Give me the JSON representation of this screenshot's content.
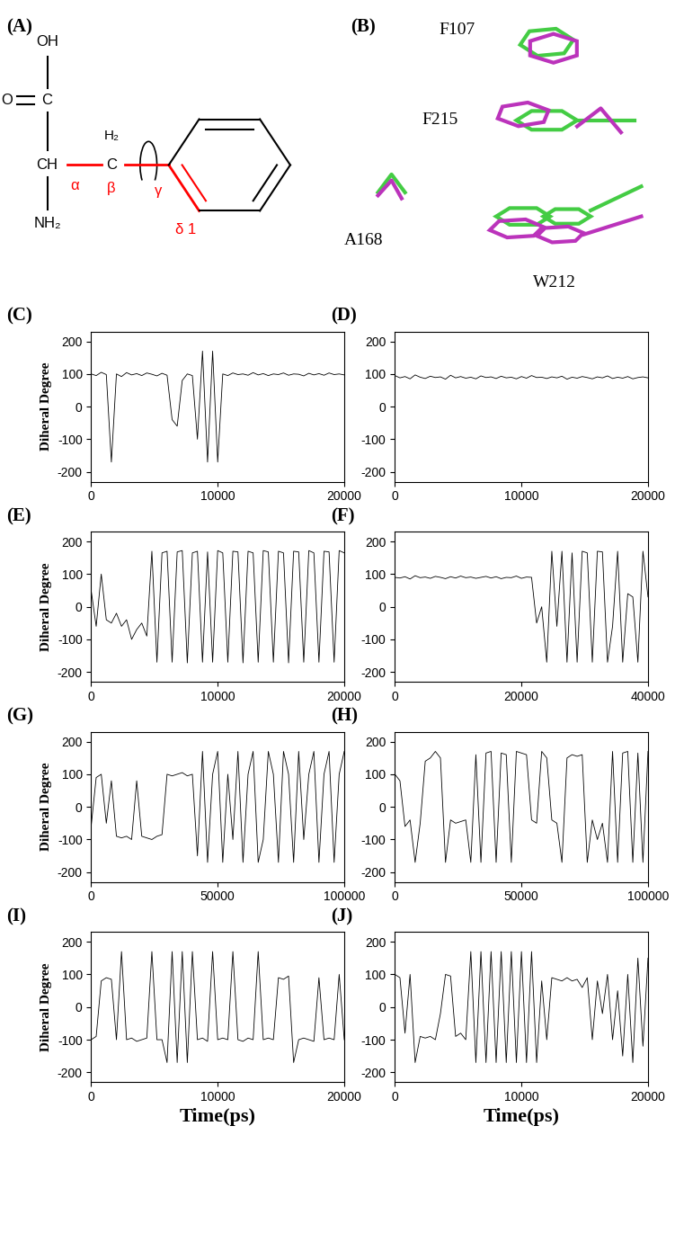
{
  "diagram": {
    "A": {
      "title": "(A)",
      "atoms": {
        "hydroxyl": "OH",
        "oxygen": "O",
        "carboxyl_carbon": "C",
        "alpha_carbon": "CH",
        "amino": "NH₂",
        "beta_hydrogens": "H₂",
        "beta_carbon": "C"
      },
      "bond_labels": {
        "alpha": "α",
        "beta": "β",
        "gamma": "γ",
        "delta": "δ 1"
      }
    },
    "B": {
      "title": "(B)",
      "residues": [
        "F107",
        "F215",
        "A168",
        "W212"
      ]
    }
  },
  "chart_data": [
    {
      "type": "line",
      "title": "(C)",
      "ylabel": "Diheral Degree",
      "color": "#000000",
      "x": [
        0,
        400,
        800,
        1200,
        1600,
        2000,
        2400,
        2800,
        3200,
        3600,
        4000,
        4400,
        4800,
        5200,
        5600,
        6000,
        6400,
        6800,
        7200,
        7600,
        8000,
        8400,
        8800,
        9200,
        9600,
        10000,
        10400,
        10800,
        11200,
        11600,
        12000,
        12400,
        12800,
        13200,
        13600,
        14000,
        14400,
        14800,
        15200,
        15600,
        16000,
        16400,
        16800,
        17200,
        17600,
        18000,
        18400,
        18800,
        19200,
        19600,
        20000
      ],
      "values": [
        100,
        95,
        105,
        98,
        -170,
        100,
        92,
        104,
        97,
        101,
        95,
        103,
        99,
        94,
        102,
        96,
        -40,
        -60,
        80,
        100,
        95,
        -100,
        170,
        -170,
        170,
        -170,
        100,
        95,
        103,
        98,
        100,
        96,
        104,
        97,
        101,
        95,
        100,
        98,
        103,
        96,
        100,
        99,
        94,
        102,
        97,
        101,
        96,
        103,
        98,
        100,
        97
      ],
      "xlim": [
        0,
        20000
      ],
      "xticks": [
        0,
        10000,
        20000
      ],
      "ylim": [
        -230,
        230
      ],
      "yticks": [
        -200,
        -100,
        0,
        100,
        200
      ]
    },
    {
      "type": "line",
      "title": "(D)",
      "color": "#000000",
      "x": [
        0,
        400,
        800,
        1200,
        1600,
        2000,
        2400,
        2800,
        3200,
        3600,
        4000,
        4400,
        4800,
        5200,
        5600,
        6000,
        6400,
        6800,
        7200,
        7600,
        8000,
        8400,
        8800,
        9200,
        9600,
        10000,
        10400,
        10800,
        11200,
        11600,
        12000,
        12400,
        12800,
        13200,
        13600,
        14000,
        14400,
        14800,
        15200,
        15600,
        16000,
        16400,
        16800,
        17200,
        17600,
        18000,
        18400,
        18800,
        19200,
        19600,
        20000
      ],
      "values": [
        95,
        88,
        92,
        85,
        97,
        90,
        86,
        93,
        89,
        91,
        84,
        96,
        88,
        92,
        87,
        90,
        85,
        94,
        89,
        91,
        86,
        93,
        88,
        90,
        85,
        92,
        87,
        95,
        89,
        90,
        86,
        91,
        88,
        93,
        84,
        90,
        87,
        92,
        89,
        85,
        91,
        88,
        94,
        86,
        90,
        87,
        92,
        85,
        89,
        91,
        88
      ],
      "xlim": [
        0,
        20000
      ],
      "xticks": [
        0,
        10000,
        20000
      ],
      "ylim": [
        -230,
        230
      ],
      "yticks": [
        -200,
        -100,
        0,
        100,
        200
      ]
    },
    {
      "type": "line",
      "title": "(E)",
      "ylabel": "Diheral Degree",
      "color": "#000000",
      "x": [
        0,
        400,
        800,
        1200,
        1600,
        2000,
        2400,
        2800,
        3200,
        3600,
        4000,
        4400,
        4800,
        5200,
        5600,
        6000,
        6400,
        6800,
        7200,
        7600,
        8000,
        8400,
        8800,
        9200,
        9600,
        10000,
        10400,
        10800,
        11200,
        11600,
        12000,
        12400,
        12800,
        13200,
        13600,
        14000,
        14400,
        14800,
        15200,
        15600,
        16000,
        16400,
        16800,
        17200,
        17600,
        18000,
        18400,
        18800,
        19200,
        19600,
        20000
      ],
      "values": [
        50,
        -60,
        100,
        -40,
        -50,
        -20,
        -60,
        -40,
        -100,
        -70,
        -50,
        -90,
        170,
        -170,
        165,
        170,
        -170,
        168,
        172,
        -172,
        165,
        170,
        -170,
        168,
        -170,
        172,
        165,
        -170,
        170,
        168,
        -172,
        170,
        165,
        -170,
        172,
        168,
        -170,
        170,
        165,
        -172,
        170,
        168,
        -170,
        172,
        165,
        -170,
        170,
        168,
        -170,
        172,
        165
      ],
      "xlim": [
        0,
        20000
      ],
      "xticks": [
        0,
        10000,
        20000
      ],
      "ylim": [
        -230,
        230
      ],
      "yticks": [
        -200,
        -100,
        0,
        100,
        200
      ]
    },
    {
      "type": "line",
      "title": "(F)",
      "color": "#000000",
      "x": [
        0,
        800,
        1600,
        2400,
        3200,
        4000,
        4800,
        5600,
        6400,
        7200,
        8000,
        8800,
        9600,
        10400,
        11200,
        12000,
        12800,
        13600,
        14400,
        15200,
        16000,
        16800,
        17600,
        18400,
        19200,
        20000,
        20800,
        21600,
        22400,
        23200,
        24000,
        24800,
        25600,
        26400,
        27200,
        28000,
        28800,
        29600,
        30400,
        31200,
        32000,
        32800,
        33600,
        34400,
        35200,
        36000,
        36800,
        37600,
        38400,
        39200,
        40000
      ],
      "values": [
        90,
        88,
        92,
        85,
        95,
        89,
        91,
        87,
        93,
        90,
        86,
        92,
        88,
        94,
        89,
        91,
        87,
        90,
        93,
        88,
        92,
        86,
        90,
        89,
        94,
        87,
        91,
        90,
        -50,
        0,
        -170,
        170,
        -60,
        170,
        -170,
        165,
        -170,
        170,
        165,
        -170,
        170,
        168,
        -170,
        -60,
        170,
        -170,
        40,
        30,
        -170,
        170,
        30
      ],
      "xlim": [
        0,
        40000
      ],
      "xticks": [
        0,
        20000,
        40000
      ],
      "ylim": [
        -230,
        230
      ],
      "yticks": [
        -200,
        -100,
        0,
        100,
        200
      ]
    },
    {
      "type": "line",
      "title": "(G)",
      "ylabel": "Diheral Degree",
      "color": "#000000",
      "x": [
        0,
        2000,
        4000,
        6000,
        8000,
        10000,
        12000,
        14000,
        16000,
        18000,
        20000,
        22000,
        24000,
        26000,
        28000,
        30000,
        32000,
        34000,
        36000,
        38000,
        40000,
        42000,
        44000,
        46000,
        48000,
        50000,
        52000,
        54000,
        56000,
        58000,
        60000,
        62000,
        64000,
        66000,
        68000,
        70000,
        72000,
        74000,
        76000,
        78000,
        80000,
        82000,
        84000,
        86000,
        88000,
        90000,
        92000,
        94000,
        96000,
        98000,
        100000
      ],
      "values": [
        -60,
        90,
        100,
        -50,
        80,
        -90,
        -95,
        -90,
        -100,
        80,
        -90,
        -95,
        -100,
        -90,
        -85,
        100,
        95,
        100,
        105,
        95,
        100,
        -150,
        170,
        -170,
        100,
        170,
        -170,
        100,
        -100,
        170,
        -170,
        100,
        170,
        -170,
        -100,
        170,
        100,
        -170,
        170,
        100,
        -170,
        170,
        -100,
        100,
        170,
        -170,
        100,
        170,
        -170,
        100,
        170
      ],
      "xlim": [
        0,
        100000
      ],
      "xticks": [
        0,
        50000,
        100000
      ],
      "ylim": [
        -230,
        230
      ],
      "yticks": [
        -200,
        -100,
        0,
        100,
        200
      ]
    },
    {
      "type": "line",
      "title": "(H)",
      "color": "#000000",
      "x": [
        0,
        2000,
        4000,
        6000,
        8000,
        10000,
        12000,
        14000,
        16000,
        18000,
        20000,
        22000,
        24000,
        26000,
        28000,
        30000,
        32000,
        34000,
        36000,
        38000,
        40000,
        42000,
        44000,
        46000,
        48000,
        50000,
        52000,
        54000,
        56000,
        58000,
        60000,
        62000,
        64000,
        66000,
        68000,
        70000,
        72000,
        74000,
        76000,
        78000,
        80000,
        82000,
        84000,
        86000,
        88000,
        90000,
        92000,
        94000,
        96000,
        98000,
        100000
      ],
      "values": [
        100,
        80,
        -60,
        -40,
        -170,
        -50,
        140,
        150,
        170,
        150,
        -170,
        -40,
        -50,
        -45,
        -40,
        -170,
        160,
        -170,
        165,
        170,
        -170,
        165,
        160,
        -170,
        170,
        165,
        160,
        -40,
        -50,
        170,
        150,
        -40,
        -50,
        -170,
        150,
        160,
        155,
        160,
        -170,
        -40,
        -100,
        -50,
        -170,
        170,
        -170,
        165,
        170,
        -170,
        165,
        -170,
        170
      ],
      "xlim": [
        0,
        100000
      ],
      "xticks": [
        0,
        50000,
        100000
      ],
      "ylim": [
        -230,
        230
      ],
      "yticks": [
        -200,
        -100,
        0,
        100,
        200
      ]
    },
    {
      "type": "line",
      "title": "(I)",
      "ylabel": "Diheral Degree",
      "xlabel": "Time(ps)",
      "color": "#000000",
      "x": [
        0,
        400,
        800,
        1200,
        1600,
        2000,
        2400,
        2800,
        3200,
        3600,
        4000,
        4400,
        4800,
        5200,
        5600,
        6000,
        6400,
        6800,
        7200,
        7600,
        8000,
        8400,
        8800,
        9200,
        9600,
        10000,
        10400,
        10800,
        11200,
        11600,
        12000,
        12400,
        12800,
        13200,
        13600,
        14000,
        14400,
        14800,
        15200,
        15600,
        16000,
        16400,
        16800,
        17200,
        17600,
        18000,
        18400,
        18800,
        19200,
        19600,
        20000
      ],
      "values": [
        -100,
        -90,
        80,
        90,
        85,
        -100,
        170,
        -100,
        -95,
        -105,
        -100,
        -95,
        170,
        -100,
        -100,
        -170,
        170,
        -170,
        170,
        -170,
        170,
        -100,
        -95,
        -105,
        170,
        -100,
        -95,
        -100,
        170,
        -100,
        -105,
        -95,
        -100,
        170,
        -100,
        -95,
        -100,
        90,
        85,
        95,
        -170,
        -100,
        -95,
        -100,
        -105,
        90,
        -100,
        -95,
        -100,
        100,
        -100
      ],
      "xlim": [
        0,
        20000
      ],
      "xticks": [
        0,
        10000,
        20000
      ],
      "ylim": [
        -230,
        230
      ],
      "yticks": [
        -200,
        -100,
        0,
        100,
        200
      ]
    },
    {
      "type": "line",
      "title": "(J)",
      "xlabel": "Time(ps)",
      "color": "#000000",
      "x": [
        0,
        400,
        800,
        1200,
        1600,
        2000,
        2400,
        2800,
        3200,
        3600,
        4000,
        4400,
        4800,
        5200,
        5600,
        6000,
        6400,
        6800,
        7200,
        7600,
        8000,
        8400,
        8800,
        9200,
        9600,
        10000,
        10400,
        10800,
        11200,
        11600,
        12000,
        12400,
        12800,
        13200,
        13600,
        14000,
        14400,
        14800,
        15200,
        15600,
        16000,
        16400,
        16800,
        17200,
        17600,
        18000,
        18400,
        18800,
        19200,
        19600,
        20000
      ],
      "values": [
        100,
        90,
        -80,
        100,
        -170,
        -90,
        -95,
        -90,
        -100,
        -20,
        100,
        95,
        -90,
        -80,
        -100,
        170,
        -170,
        170,
        -170,
        170,
        -170,
        170,
        -170,
        170,
        -170,
        170,
        -170,
        170,
        -170,
        80,
        -100,
        90,
        85,
        80,
        90,
        80,
        85,
        60,
        90,
        -100,
        80,
        -20,
        100,
        -100,
        50,
        -150,
        100,
        -170,
        150,
        -120,
        150
      ],
      "xlim": [
        0,
        20000
      ],
      "xticks": [
        0,
        10000,
        20000
      ],
      "ylim": [
        -230,
        230
      ],
      "yticks": [
        -200,
        -100,
        0,
        100,
        200
      ]
    }
  ]
}
